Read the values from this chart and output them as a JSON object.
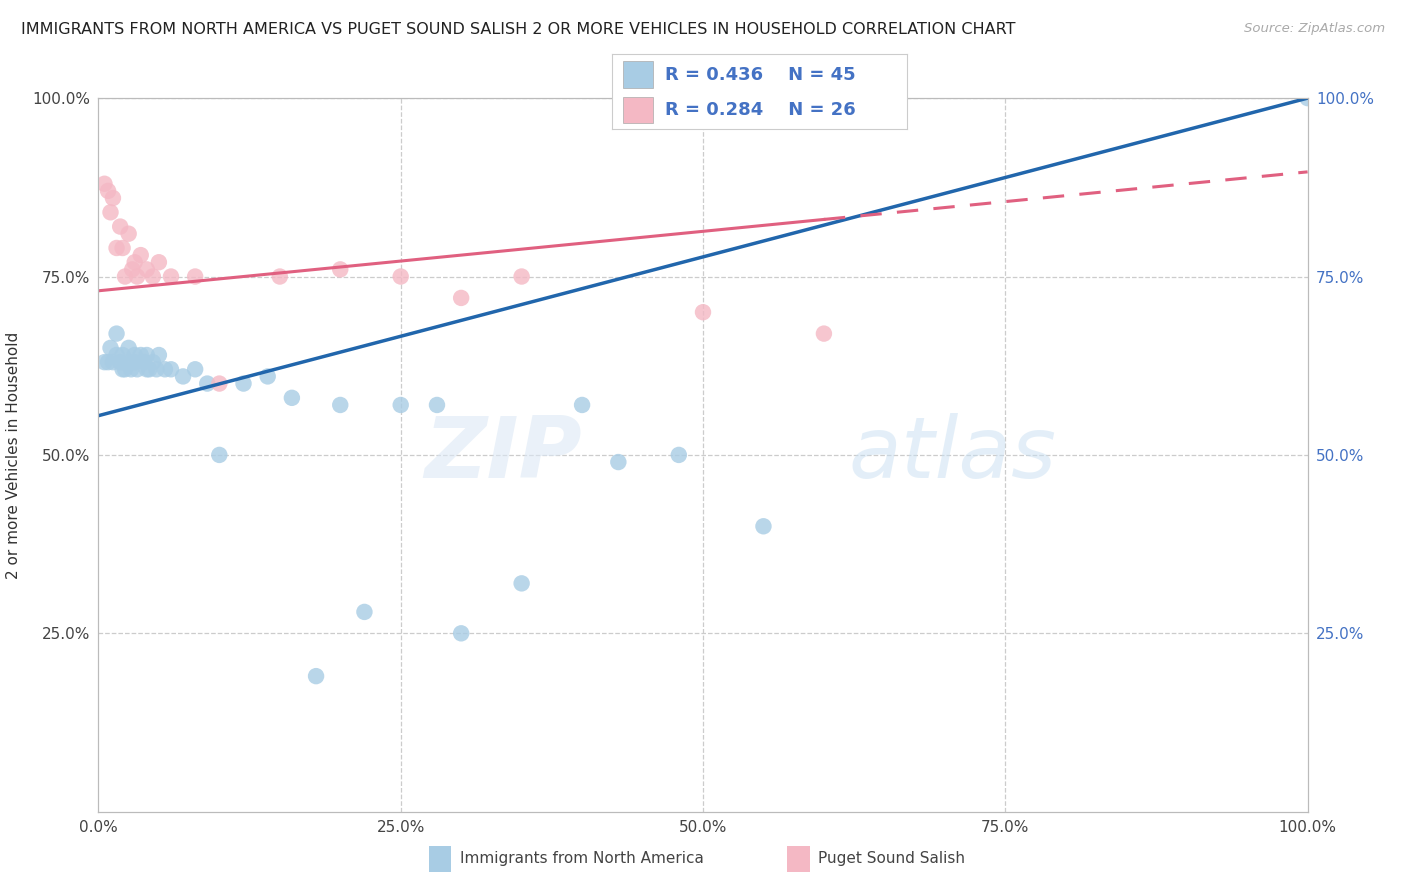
{
  "title": "IMMIGRANTS FROM NORTH AMERICA VS PUGET SOUND SALISH 2 OR MORE VEHICLES IN HOUSEHOLD CORRELATION CHART",
  "source": "Source: ZipAtlas.com",
  "ylabel": "2 or more Vehicles in Household",
  "xlim": [
    0.0,
    1.0
  ],
  "ylim": [
    0.0,
    1.0
  ],
  "xtick_vals": [
    0.0,
    0.25,
    0.5,
    0.75,
    1.0
  ],
  "xtick_labels": [
    "0.0%",
    "25.0%",
    "50.0%",
    "75.0%",
    "100.0%"
  ],
  "ytick_vals": [
    0.25,
    0.5,
    0.75,
    1.0
  ],
  "ytick_labels": [
    "25.0%",
    "50.0%",
    "75.0%",
    "100.0%"
  ],
  "blue_R": 0.436,
  "blue_N": 45,
  "pink_R": 0.284,
  "pink_N": 26,
  "blue_dot_color": "#a8cce4",
  "pink_dot_color": "#f4b8c4",
  "blue_line_color": "#2166ac",
  "pink_line_color": "#e06080",
  "right_axis_color": "#4472c4",
  "grid_color": "#cccccc",
  "blue_x": [
    0.005,
    0.008,
    0.01,
    0.012,
    0.015,
    0.015,
    0.018,
    0.02,
    0.02,
    0.022,
    0.025,
    0.025,
    0.027,
    0.03,
    0.03,
    0.032,
    0.035,
    0.038,
    0.04,
    0.04,
    0.042,
    0.045,
    0.048,
    0.05,
    0.055,
    0.06,
    0.07,
    0.08,
    0.09,
    0.1,
    0.12,
    0.14,
    0.16,
    0.18,
    0.2,
    0.22,
    0.25,
    0.28,
    0.3,
    0.35,
    0.4,
    0.43,
    0.48,
    0.55,
    1.0
  ],
  "blue_y": [
    0.63,
    0.63,
    0.65,
    0.63,
    0.64,
    0.67,
    0.63,
    0.62,
    0.64,
    0.62,
    0.63,
    0.65,
    0.62,
    0.63,
    0.64,
    0.62,
    0.64,
    0.63,
    0.62,
    0.64,
    0.62,
    0.63,
    0.62,
    0.64,
    0.62,
    0.62,
    0.61,
    0.62,
    0.6,
    0.5,
    0.6,
    0.61,
    0.58,
    0.19,
    0.57,
    0.28,
    0.57,
    0.57,
    0.25,
    0.32,
    0.57,
    0.49,
    0.5,
    0.4,
    1.0
  ],
  "pink_x": [
    0.005,
    0.008,
    0.01,
    0.012,
    0.015,
    0.018,
    0.02,
    0.022,
    0.025,
    0.028,
    0.03,
    0.032,
    0.035,
    0.04,
    0.045,
    0.05,
    0.06,
    0.08,
    0.1,
    0.15,
    0.2,
    0.25,
    0.3,
    0.35,
    0.5,
    0.6
  ],
  "pink_y": [
    0.88,
    0.87,
    0.84,
    0.86,
    0.79,
    0.82,
    0.79,
    0.75,
    0.81,
    0.76,
    0.77,
    0.75,
    0.78,
    0.76,
    0.75,
    0.77,
    0.75,
    0.75,
    0.6,
    0.75,
    0.76,
    0.75,
    0.72,
    0.75,
    0.7,
    0.67
  ]
}
